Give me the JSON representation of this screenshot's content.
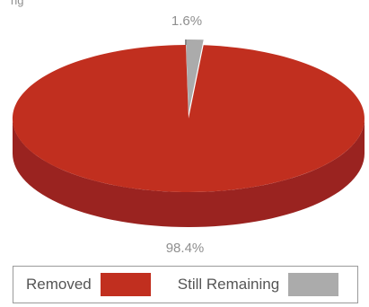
{
  "top_text": "ng",
  "colors": {
    "removed_top": "#c12f1f",
    "removed_side": "#9a2320",
    "remaining_top": "#ababab",
    "remaining_side": "#8a8a8a",
    "label_text": "#8f8f8f"
  },
  "legend": {
    "items": [
      {
        "label": "Removed",
        "color": "#c12f1f"
      },
      {
        "label": "Still Remaining",
        "color": "#ababab"
      }
    ]
  },
  "chart_data": {
    "type": "pie",
    "title": "",
    "slices": [
      {
        "label": "Removed",
        "value": 98.4,
        "display": "98.4%",
        "color": "#c12f1f"
      },
      {
        "label": "Still Remaining",
        "value": 1.6,
        "display": "1.6%",
        "color": "#ababab"
      }
    ],
    "legend_position": "bottom"
  }
}
